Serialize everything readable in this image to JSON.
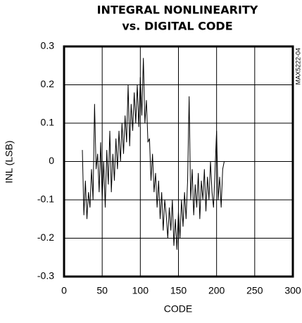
{
  "chart_data": {
    "type": "line",
    "title": "INTEGRAL NONLINEARITY",
    "subtitle": "vs. DIGITAL CODE",
    "annotation": "MAX5222-04",
    "x_label": "CODE",
    "y_label": "INL (LSB)",
    "xlim": [
      0,
      300
    ],
    "xticks": [
      0,
      50,
      100,
      150,
      200,
      250,
      300
    ],
    "ylim": [
      -0.3,
      0.3
    ],
    "yticks": [
      0.3,
      0.2,
      0.1,
      0,
      -0.1,
      -0.2,
      -0.3
    ],
    "grid": true,
    "series": [
      {
        "color": "#000000",
        "x": [
          24,
          26,
          28,
          30,
          32,
          34,
          36,
          38,
          40,
          42,
          44,
          46,
          48,
          50,
          52,
          54,
          56,
          58,
          60,
          62,
          64,
          66,
          68,
          70,
          72,
          74,
          76,
          78,
          80,
          82,
          84,
          86,
          88,
          90,
          92,
          94,
          96,
          98,
          100,
          102,
          104,
          106,
          108,
          110,
          112,
          114,
          116,
          118,
          120,
          122,
          124,
          126,
          128,
          130,
          132,
          134,
          136,
          138,
          140,
          142,
          144,
          146,
          148,
          150,
          152,
          154,
          156,
          158,
          160,
          162,
          164,
          166,
          168,
          170,
          172,
          174,
          176,
          178,
          180,
          182,
          184,
          186,
          188,
          190,
          192,
          194,
          196,
          198,
          200,
          202,
          204,
          206,
          208,
          210
        ],
        "values": [
          0.03,
          -0.14,
          -0.05,
          -0.15,
          -0.08,
          -0.12,
          -0.02,
          -0.1,
          0.15,
          -0.02,
          0.02,
          -0.08,
          0.05,
          -0.1,
          0.0,
          -0.12,
          0.03,
          -0.06,
          0.08,
          -0.08,
          0.02,
          -0.05,
          0.06,
          -0.02,
          0.08,
          0.0,
          0.1,
          0.02,
          0.12,
          0.05,
          0.2,
          0.04,
          0.15,
          0.08,
          0.18,
          0.1,
          0.2,
          0.09,
          0.22,
          0.12,
          0.27,
          0.1,
          0.16,
          0.05,
          0.06,
          -0.05,
          0.02,
          -0.08,
          -0.03,
          -0.12,
          -0.05,
          -0.15,
          -0.08,
          -0.18,
          -0.1,
          -0.14,
          -0.2,
          -0.12,
          -0.18,
          -0.1,
          -0.22,
          -0.15,
          -0.23,
          -0.13,
          -0.2,
          -0.1,
          -0.17,
          -0.08,
          -0.15,
          -0.05,
          0.17,
          -0.1,
          -0.02,
          -0.14,
          -0.06,
          -0.12,
          -0.03,
          -0.15,
          -0.05,
          -0.1,
          -0.02,
          -0.13,
          -0.04,
          -0.1,
          0.0,
          -0.08,
          -0.12,
          -0.02,
          0.08,
          -0.1,
          -0.04,
          -0.12,
          -0.02,
          0.0
        ]
      }
    ]
  }
}
